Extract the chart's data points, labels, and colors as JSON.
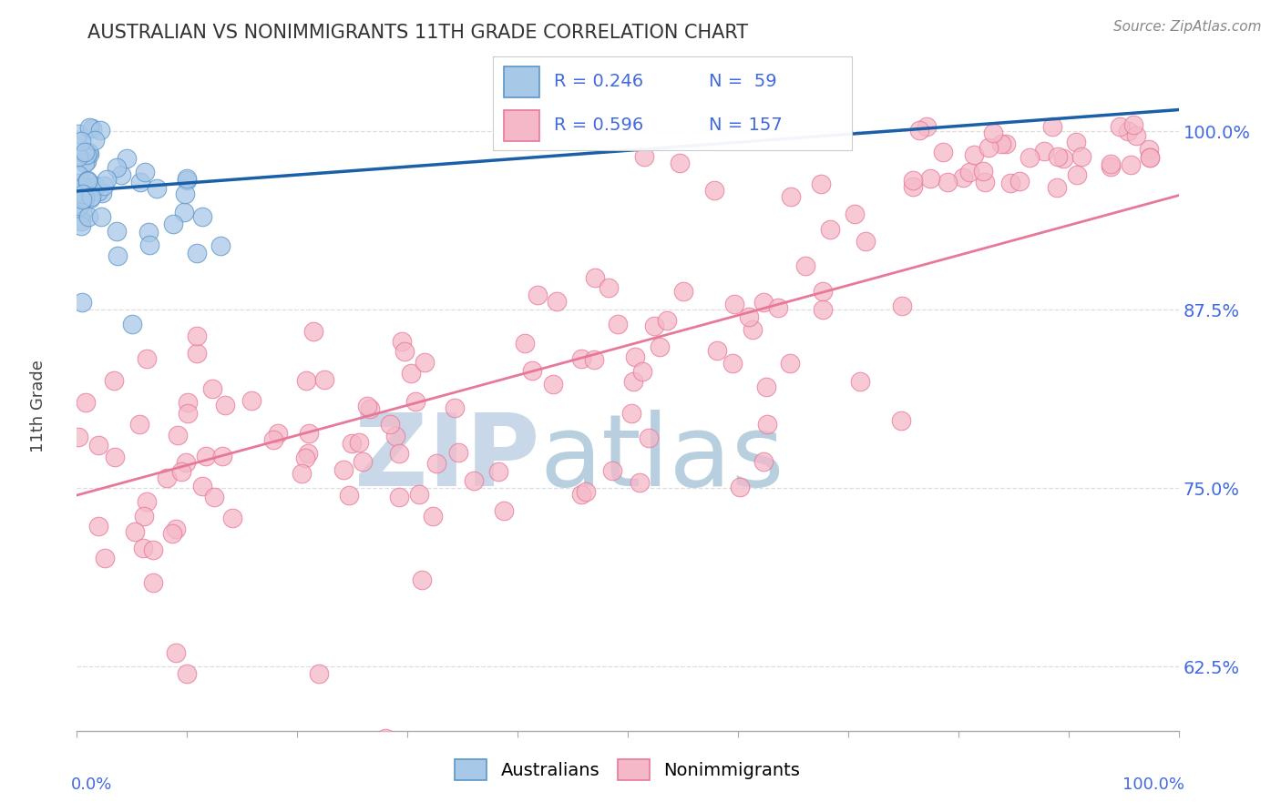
{
  "title": "AUSTRALIAN VS NONIMMIGRANTS 11TH GRADE CORRELATION CHART",
  "source_text": "Source: ZipAtlas.com",
  "ylabel": "11th Grade",
  "yticks": [
    62.5,
    75.0,
    87.5,
    100.0
  ],
  "ytick_labels": [
    "62.5%",
    "75.0%",
    "87.5%",
    "100.0%"
  ],
  "ymin": 58.0,
  "ymax": 103.5,
  "xmin": 0.0,
  "xmax": 100.0,
  "blue_color": "#a8c8e8",
  "pink_color": "#f5b8c8",
  "blue_edge": "#5a96c8",
  "pink_edge": "#e87898",
  "trend_blue": "#1a5fa8",
  "trend_pink": "#e87898",
  "watermark_zip_color": "#c8d8e8",
  "watermark_atlas_color": "#b8cfe0",
  "title_color": "#333333",
  "axis_label_color": "#4169e1",
  "grid_color": "#dddddd",
  "background_color": "#ffffff",
  "marker_size": 220,
  "aus_trend_x0": 0.0,
  "aus_trend_y0": 95.8,
  "aus_trend_x1": 100.0,
  "aus_trend_y1": 101.5,
  "nonimm_trend_x0": 0.0,
  "nonimm_trend_y0": 74.5,
  "nonimm_trend_x1": 100.0,
  "nonimm_trend_y1": 95.5
}
